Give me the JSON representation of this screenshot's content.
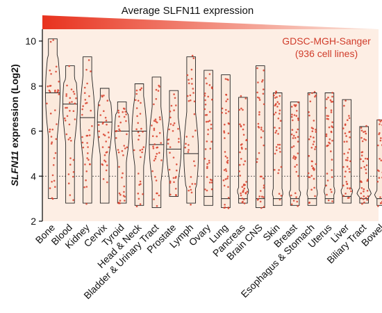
{
  "header": {
    "title": "Average SLFN11 expression",
    "gradient_start_color": "#e8321e",
    "gradient_end_color": "#fbe6dc"
  },
  "annotation": {
    "line1": "GDSC-MGH-Sanger",
    "line2": "(936 cell lines)",
    "color": "#d03c2a"
  },
  "chart_data": {
    "type": "violin",
    "ylabel_gene": "SLFN11",
    "ylabel_rest": " expression (Log2)",
    "ylim": [
      2,
      10.5
    ],
    "yticks": [
      2,
      4,
      6,
      8,
      10
    ],
    "threshold_line": 4,
    "background_color": "#fdeee4",
    "violin_color": "#fbe9dc",
    "point_color": "#d8402c",
    "categories": [
      {
        "name": "Bone",
        "min": 3.0,
        "max": 10.1,
        "median": 7.7
      },
      {
        "name": "Blood",
        "min": 2.8,
        "max": 8.9,
        "median": 7.2
      },
      {
        "name": "Kidney",
        "min": 2.8,
        "max": 9.3,
        "median": 6.6
      },
      {
        "name": "Cervix",
        "min": 2.8,
        "max": 7.9,
        "median": 6.4
      },
      {
        "name": "Tyroid",
        "min": 2.8,
        "max": 7.3,
        "median": 6.0
      },
      {
        "name": "Head & Neck",
        "min": 2.7,
        "max": 8.1,
        "median": 6.0
      },
      {
        "name": "Bladder & Urinary Tract",
        "min": 2.6,
        "max": 8.4,
        "median": 5.4
      },
      {
        "name": "Prostate",
        "min": 3.1,
        "max": 7.8,
        "median": 5.2
      },
      {
        "name": "Lymph",
        "min": 2.8,
        "max": 9.3,
        "median": 5.0
      },
      {
        "name": "Ovary",
        "min": 2.7,
        "max": 8.7,
        "median": 3.1
      },
      {
        "name": "Lung",
        "min": 2.6,
        "max": 8.5,
        "median": 3.0
      },
      {
        "name": "Pancreas",
        "min": 2.8,
        "max": 7.5,
        "median": 3.0
      },
      {
        "name": "Brain CNS",
        "min": 2.6,
        "max": 8.9,
        "median": 3.0
      },
      {
        "name": "Skin",
        "min": 2.7,
        "max": 7.7,
        "median": 3.0
      },
      {
        "name": "Breast",
        "min": 2.7,
        "max": 7.3,
        "median": 3.0
      },
      {
        "name": "Esophagus & Stomach",
        "min": 2.7,
        "max": 7.7,
        "median": 3.0
      },
      {
        "name": "Uterus",
        "min": 2.8,
        "max": 7.7,
        "median": 3.0
      },
      {
        "name": "Liver",
        "min": 2.8,
        "max": 7.4,
        "median": 3.1
      },
      {
        "name": "Biliary Tract",
        "min": 2.8,
        "max": 6.2,
        "median": 3.0
      },
      {
        "name": "Bowel",
        "min": 2.7,
        "max": 6.5,
        "median": 3.0
      }
    ]
  }
}
